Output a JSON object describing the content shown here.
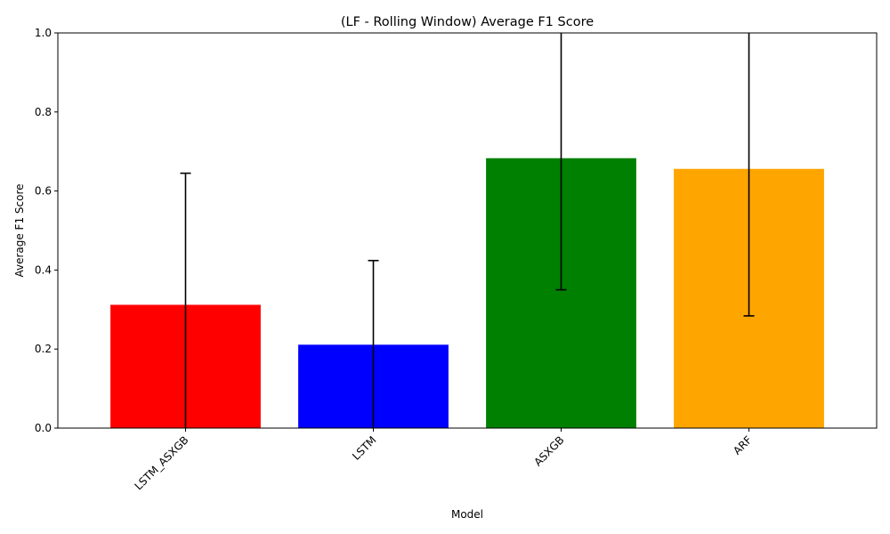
{
  "chart_data": {
    "type": "bar",
    "title": "(LF - Rolling Window) Average F1 Score",
    "xlabel": "Model",
    "ylabel": "Average F1 Score",
    "ylim": [
      0,
      1.0
    ],
    "yticks": [
      "0.0",
      "0.2",
      "0.4",
      "0.6",
      "0.8",
      "1.0"
    ],
    "categories": [
      "LSTM_ASXGB",
      "LSTM",
      "ASXGB",
      "ARF"
    ],
    "values": [
      0.312,
      0.211,
      0.683,
      0.656
    ],
    "error": [
      0.333,
      0.213,
      0.333,
      0.372
    ],
    "colors": [
      "#ff0000",
      "#0000ff",
      "#008000",
      "#ffa500"
    ],
    "grid": false,
    "legend": "none"
  }
}
